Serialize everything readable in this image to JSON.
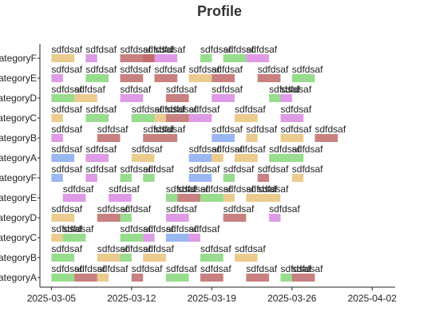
{
  "chart_data": {
    "type": "bar",
    "subtype": "gantt-timeline",
    "title": "Profile",
    "xlabel": "",
    "ylabel": "",
    "x_ticks": [
      "2025-03-05",
      "2025-03-12",
      "2025-03-19",
      "2025-03-26",
      "2025-04-02"
    ],
    "xlim": [
      "2025-03-04",
      "2025-04-04"
    ],
    "grid": false,
    "legend": "none",
    "colors": {
      "orange": "#e9c27a",
      "violet": "#d98ae0",
      "red": "#c06a6a",
      "green": "#86d67a",
      "blue": "#8aaaf0"
    },
    "categories": [
      "CategoryF",
      "CategoryE",
      "CategoryD",
      "CategoryC",
      "CategoryB",
      "CategoryA",
      "CategoryF",
      "CategoryE",
      "CategoryD",
      "CategoryC",
      "CategoryB",
      "CategoryA"
    ],
    "rows": [
      {
        "category": "CategoryF",
        "bars": [
          {
            "start": "2025-03-05",
            "end": "2025-03-07",
            "color": "orange",
            "label": "sdfdsaf"
          },
          {
            "start": "2025-03-08",
            "end": "2025-03-09",
            "color": "violet",
            "label": "sdfdsaf"
          },
          {
            "start": "2025-03-11",
            "end": "2025-03-14",
            "color": "red",
            "label": "sdfdsaf"
          },
          {
            "start": "2025-03-13",
            "end": "2025-03-14",
            "color": "red",
            "label": "sdfdsaf"
          },
          {
            "start": "2025-03-14",
            "end": "2025-03-16",
            "color": "violet",
            "label": "sdfdsaf"
          },
          {
            "start": "2025-03-18",
            "end": "2025-03-19",
            "color": "green",
            "label": "sdfdsaf"
          },
          {
            "start": "2025-03-20",
            "end": "2025-03-22",
            "color": "green",
            "label": "sdfdsaf"
          },
          {
            "start": "2025-03-22",
            "end": "2025-03-24",
            "color": "violet",
            "label": "sdfdsaf"
          }
        ]
      },
      {
        "category": "CategoryE",
        "bars": [
          {
            "start": "2025-03-05",
            "end": "2025-03-06",
            "color": "violet",
            "label": "sdfdsaf"
          },
          {
            "start": "2025-03-08",
            "end": "2025-03-10",
            "color": "green",
            "label": "sdfdsaf"
          },
          {
            "start": "2025-03-11",
            "end": "2025-03-13",
            "color": "red",
            "label": "sdfdsaf"
          },
          {
            "start": "2025-03-14",
            "end": "2025-03-16",
            "color": "red",
            "label": "sdfdsaf"
          },
          {
            "start": "2025-03-17",
            "end": "2025-03-19",
            "color": "orange",
            "label": "sdfdsaf"
          },
          {
            "start": "2025-03-19",
            "end": "2025-03-21",
            "color": "red",
            "label": "sdfdsaf"
          },
          {
            "start": "2025-03-23",
            "end": "2025-03-25",
            "color": "red",
            "label": "sdfdsaf"
          },
          {
            "start": "2025-03-26",
            "end": "2025-03-28",
            "color": "green",
            "label": "sdfdsaf"
          }
        ]
      },
      {
        "category": "CategoryD",
        "bars": [
          {
            "start": "2025-03-05",
            "end": "2025-03-07",
            "color": "green",
            "label": "sdfdsaf"
          },
          {
            "start": "2025-03-07",
            "end": "2025-03-09",
            "color": "orange",
            "label": "sdfdsaf"
          },
          {
            "start": "2025-03-11",
            "end": "2025-03-13",
            "color": "violet",
            "label": "sdfdsaf"
          },
          {
            "start": "2025-03-15",
            "end": "2025-03-17",
            "color": "red",
            "label": "sdfdsaf"
          },
          {
            "start": "2025-03-19",
            "end": "2025-03-21",
            "color": "violet",
            "label": "sdfdsaf"
          },
          {
            "start": "2025-03-24",
            "end": "2025-03-25",
            "color": "green",
            "label": "sdfdsaf"
          },
          {
            "start": "2025-03-25",
            "end": "2025-03-26",
            "color": "violet",
            "label": "sdfdsaf"
          }
        ]
      },
      {
        "category": "CategoryC",
        "bars": [
          {
            "start": "2025-03-05",
            "end": "2025-03-06",
            "color": "orange",
            "label": "sdfdsaf"
          },
          {
            "start": "2025-03-08",
            "end": "2025-03-10",
            "color": "green",
            "label": "sdfdsaf"
          },
          {
            "start": "2025-03-12",
            "end": "2025-03-14",
            "color": "green",
            "label": "sdfdsaf"
          },
          {
            "start": "2025-03-14",
            "end": "2025-03-15",
            "color": "orange",
            "label": "sdfdsaf"
          },
          {
            "start": "2025-03-15",
            "end": "2025-03-17",
            "color": "red",
            "label": "sdfdsaf"
          },
          {
            "start": "2025-03-17",
            "end": "2025-03-19",
            "color": "violet",
            "label": "sdfdsaf"
          },
          {
            "start": "2025-03-21",
            "end": "2025-03-23",
            "color": "orange",
            "label": "sdfdsaf"
          },
          {
            "start": "2025-03-25",
            "end": "2025-03-27",
            "color": "violet",
            "label": "sdfdsaf"
          }
        ]
      },
      {
        "category": "CategoryB",
        "bars": [
          {
            "start": "2025-03-05",
            "end": "2025-03-06",
            "color": "violet",
            "label": "sdfdsaf"
          },
          {
            "start": "2025-03-09",
            "end": "2025-03-11",
            "color": "red",
            "label": "sdfdsaf"
          },
          {
            "start": "2025-03-13",
            "end": "2025-03-14",
            "color": "red",
            "label": "sdfdsaf"
          },
          {
            "start": "2025-03-14",
            "end": "2025-03-16",
            "color": "red",
            "label": "sdfdsaf"
          },
          {
            "start": "2025-03-19",
            "end": "2025-03-21",
            "color": "blue",
            "label": "sdfdsaf"
          },
          {
            "start": "2025-03-22",
            "end": "2025-03-23",
            "color": "orange",
            "label": "sdfdsaf"
          },
          {
            "start": "2025-03-25",
            "end": "2025-03-27",
            "color": "orange",
            "label": "sdfdsaf"
          },
          {
            "start": "2025-03-28",
            "end": "2025-03-30",
            "color": "red",
            "label": "sdfdsaf"
          }
        ]
      },
      {
        "category": "CategoryA",
        "bars": [
          {
            "start": "2025-03-05",
            "end": "2025-03-07",
            "color": "blue",
            "label": "sdfdsaf"
          },
          {
            "start": "2025-03-08",
            "end": "2025-03-10",
            "color": "violet",
            "label": "sdfdsaf"
          },
          {
            "start": "2025-03-12",
            "end": "2025-03-14",
            "color": "orange",
            "label": "sdfdsaf"
          },
          {
            "start": "2025-03-17",
            "end": "2025-03-19",
            "color": "blue",
            "label": "sdfdsaf"
          },
          {
            "start": "2025-03-19",
            "end": "2025-03-20",
            "color": "orange",
            "label": "sdfdsaf"
          },
          {
            "start": "2025-03-21",
            "end": "2025-03-23",
            "color": "orange",
            "label": "sdfdsaf"
          },
          {
            "start": "2025-03-24",
            "end": "2025-03-26",
            "color": "green",
            "label": "sdfdsaf"
          },
          {
            "start": "2025-03-26",
            "end": "2025-03-27",
            "color": "green",
            "label": "sdfdsaf"
          }
        ]
      },
      {
        "category": "CategoryF",
        "bars": [
          {
            "start": "2025-03-05",
            "end": "2025-03-06",
            "color": "blue",
            "label": "sdfdsaf"
          },
          {
            "start": "2025-03-08",
            "end": "2025-03-09",
            "color": "violet",
            "label": "sdfdsaf"
          },
          {
            "start": "2025-03-11",
            "end": "2025-03-12",
            "color": "green",
            "label": "sdfdsaf"
          },
          {
            "start": "2025-03-13",
            "end": "2025-03-14",
            "color": "green",
            "label": "sdfdsaf"
          },
          {
            "start": "2025-03-17",
            "end": "2025-03-19",
            "color": "blue",
            "label": "sdfdsaf"
          },
          {
            "start": "2025-03-20",
            "end": "2025-03-21",
            "color": "green",
            "label": "sdfdsaf"
          },
          {
            "start": "2025-03-23",
            "end": "2025-03-24",
            "color": "red",
            "label": "sdfdsaf"
          },
          {
            "start": "2025-03-26",
            "end": "2025-03-27",
            "color": "orange",
            "label": "sdfdsaf"
          }
        ]
      },
      {
        "category": "CategoryE",
        "bars": [
          {
            "start": "2025-03-06",
            "end": "2025-03-08",
            "color": "violet",
            "label": "sdfdsaf"
          },
          {
            "start": "2025-03-10",
            "end": "2025-03-12",
            "color": "violet",
            "label": "sdfdsaf"
          },
          {
            "start": "2025-03-15",
            "end": "2025-03-16",
            "color": "green",
            "label": "sdfdsaf"
          },
          {
            "start": "2025-03-16",
            "end": "2025-03-18",
            "color": "red",
            "label": "sdfdsaf"
          },
          {
            "start": "2025-03-18",
            "end": "2025-03-20",
            "color": "green",
            "label": "sdfdsaf"
          },
          {
            "start": "2025-03-20",
            "end": "2025-03-21",
            "color": "orange",
            "label": "sdfdsaf"
          },
          {
            "start": "2025-03-22",
            "end": "2025-03-23",
            "color": "orange",
            "label": "sdfdsaf"
          },
          {
            "start": "2025-03-23",
            "end": "2025-03-25",
            "color": "orange",
            "label": "sdfdsaf"
          }
        ]
      },
      {
        "category": "CategoryD",
        "bars": [
          {
            "start": "2025-03-05",
            "end": "2025-03-07",
            "color": "orange",
            "label": "sdfdsaf"
          },
          {
            "start": "2025-03-09",
            "end": "2025-03-11",
            "color": "red",
            "label": "sdfdsaf"
          },
          {
            "start": "2025-03-11",
            "end": "2025-03-12",
            "color": "green",
            "label": "sdfdsaf"
          },
          {
            "start": "2025-03-15",
            "end": "2025-03-17",
            "color": "violet",
            "label": "sdfdsaf"
          },
          {
            "start": "2025-03-20",
            "end": "2025-03-22",
            "color": "red",
            "label": "sdfdsaf"
          },
          {
            "start": "2025-03-24",
            "end": "2025-03-25",
            "color": "violet",
            "label": "sdfdsaf"
          }
        ]
      },
      {
        "category": "CategoryC",
        "bars": [
          {
            "start": "2025-03-05",
            "end": "2025-03-06",
            "color": "orange",
            "label": "sdfdsaf"
          },
          {
            "start": "2025-03-06",
            "end": "2025-03-08",
            "color": "green",
            "label": "sdfdsaf"
          },
          {
            "start": "2025-03-11",
            "end": "2025-03-13",
            "color": "green",
            "label": "sdfdsaf"
          },
          {
            "start": "2025-03-13",
            "end": "2025-03-14",
            "color": "violet",
            "label": "sdfdsaf"
          },
          {
            "start": "2025-03-15",
            "end": "2025-03-17",
            "color": "blue",
            "label": "sdfdsaf"
          },
          {
            "start": "2025-03-17",
            "end": "2025-03-18",
            "color": "violet",
            "label": "sdfdsaf"
          }
        ]
      },
      {
        "category": "CategoryB",
        "bars": [
          {
            "start": "2025-03-05",
            "end": "2025-03-07",
            "color": "green",
            "label": "sdfdsaf"
          },
          {
            "start": "2025-03-09",
            "end": "2025-03-11",
            "color": "orange",
            "label": "sdfdsaf"
          },
          {
            "start": "2025-03-11",
            "end": "2025-03-12",
            "color": "green",
            "label": "sdfdsaf"
          },
          {
            "start": "2025-03-13",
            "end": "2025-03-15",
            "color": "orange",
            "label": "sdfdsaf"
          },
          {
            "start": "2025-03-18",
            "end": "2025-03-20",
            "color": "green",
            "label": "sdfdsaf"
          },
          {
            "start": "2025-03-21",
            "end": "2025-03-23",
            "color": "orange",
            "label": "sdfdsaf"
          }
        ]
      },
      {
        "category": "CategoryA",
        "bars": [
          {
            "start": "2025-03-05",
            "end": "2025-03-07",
            "color": "green",
            "label": "sdfdsaf"
          },
          {
            "start": "2025-03-07",
            "end": "2025-03-09",
            "color": "red",
            "label": "sdfdsaf"
          },
          {
            "start": "2025-03-09",
            "end": "2025-03-10",
            "color": "orange",
            "label": "sdfdsaf"
          },
          {
            "start": "2025-03-12",
            "end": "2025-03-13",
            "color": "red",
            "label": "sdfdsaf"
          },
          {
            "start": "2025-03-15",
            "end": "2025-03-17",
            "color": "green",
            "label": "sdfdsaf"
          },
          {
            "start": "2025-03-18",
            "end": "2025-03-20",
            "color": "red",
            "label": "sdfdsaf"
          },
          {
            "start": "2025-03-22",
            "end": "2025-03-24",
            "color": "red",
            "label": "sdfdsaf"
          },
          {
            "start": "2025-03-25",
            "end": "2025-03-26",
            "color": "green",
            "label": "sdfdsaf"
          },
          {
            "start": "2025-03-26",
            "end": "2025-03-28",
            "color": "red",
            "label": "sdfdsaf"
          }
        ]
      }
    ]
  }
}
